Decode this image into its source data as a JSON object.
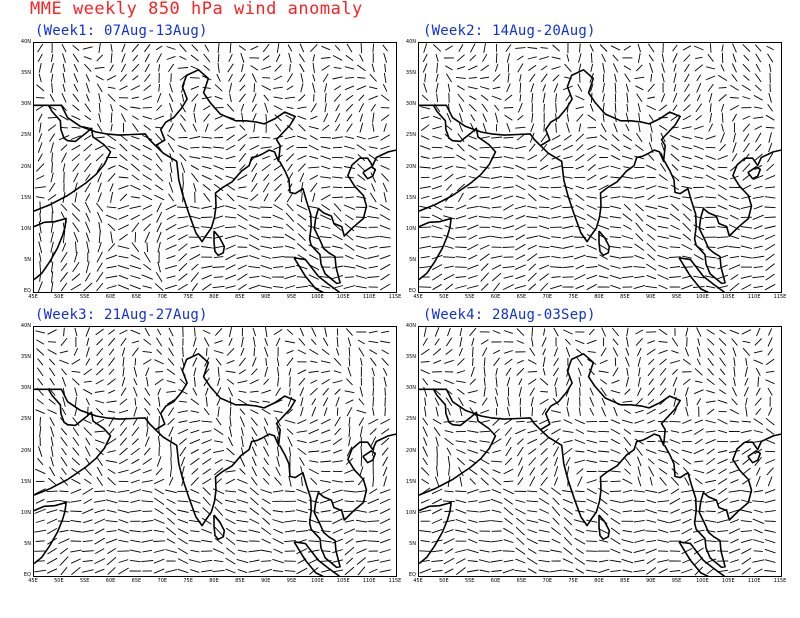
{
  "title": "MME weekly 850 hPa wind anomaly",
  "colors": {
    "title": "#ff2020",
    "panel_title": "#1030e0",
    "vectors": "#000000",
    "coast": "#000000"
  },
  "map": {
    "lon_range": [
      45,
      115
    ],
    "lat_range": [
      0,
      40
    ],
    "xticks": [
      "45E",
      "50E",
      "55E",
      "60E",
      "65E",
      "70E",
      "75E",
      "80E",
      "85E",
      "90E",
      "95E",
      "100E",
      "105E",
      "110E",
      "115E"
    ],
    "yticks": [
      "EQ",
      "5N",
      "10N",
      "15N",
      "20N",
      "25N",
      "30N",
      "35N",
      "40N"
    ]
  },
  "panels": [
    {
      "id": "week1",
      "label": "(Week1: 07Aug-13Aug)"
    },
    {
      "id": "week2",
      "label": "(Week2: 14Aug-20Aug)"
    },
    {
      "id": "week3",
      "label": "(Week3: 21Aug-27Aug)"
    },
    {
      "id": "week4",
      "label": "(Week4: 28Aug-03Sep)"
    }
  ]
}
